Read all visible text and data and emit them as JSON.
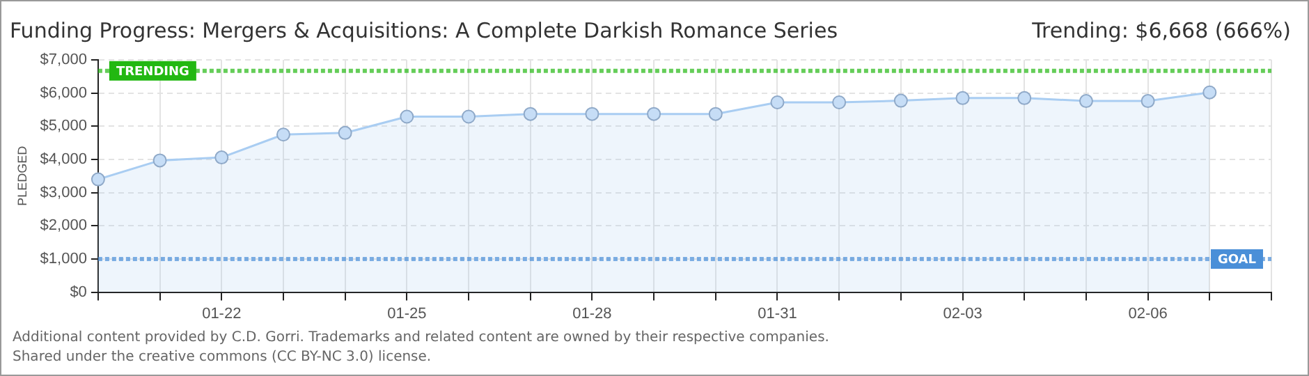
{
  "chart_data": {
    "type": "area",
    "title": "Funding Progress: Mergers & Acquisitions: A Complete Darkish Romance Series",
    "ylabel": "PLEDGED",
    "categories": [
      null,
      null,
      "01-22",
      null,
      null,
      "01-25",
      null,
      null,
      "01-28",
      null,
      null,
      "01-31",
      null,
      null,
      "02-03",
      null,
      null,
      "02-06",
      null,
      null
    ],
    "series": [
      {
        "color": "#a9cdf2",
        "values": [
          3400,
          3970,
          4060,
          4750,
          4800,
          5290,
          5290,
          5370,
          5370,
          5370,
          5370,
          5720,
          5720,
          5770,
          5850,
          5850,
          5760,
          5760,
          6020,
          null
        ]
      }
    ],
    "ylim": [
      0,
      7000
    ],
    "yticks": [
      {
        "value": 0,
        "label": "$0"
      },
      {
        "value": 1000,
        "label": "$1,000"
      },
      {
        "value": 2000,
        "label": "$2,000"
      },
      {
        "value": 3000,
        "label": "$3,000"
      },
      {
        "value": 4000,
        "label": "$4,000"
      },
      {
        "value": 5000,
        "label": "$5,000"
      },
      {
        "value": 6000,
        "label": "$6,000"
      },
      {
        "value": 7000,
        "label": "$7,000"
      }
    ],
    "ref_lines": [
      {
        "axis": "y",
        "value": 6668,
        "label": "TRENDING",
        "color": "#22b811",
        "line_style": "dotted"
      },
      {
        "axis": "y",
        "value": 1000,
        "label": "GOAL",
        "color": "#4a8fd8",
        "line_style": "dotted"
      }
    ],
    "annotations": [
      "Trending: $6,668 (666%)",
      "Additional content provided by C.D. Gorri. Trademarks and related content are owned by their respective companies.",
      "Shared under the creative commons (CC BY-NC 3.0) license."
    ],
    "grid": true,
    "legend": false,
    "marker": "circle",
    "line_style": "solid"
  }
}
